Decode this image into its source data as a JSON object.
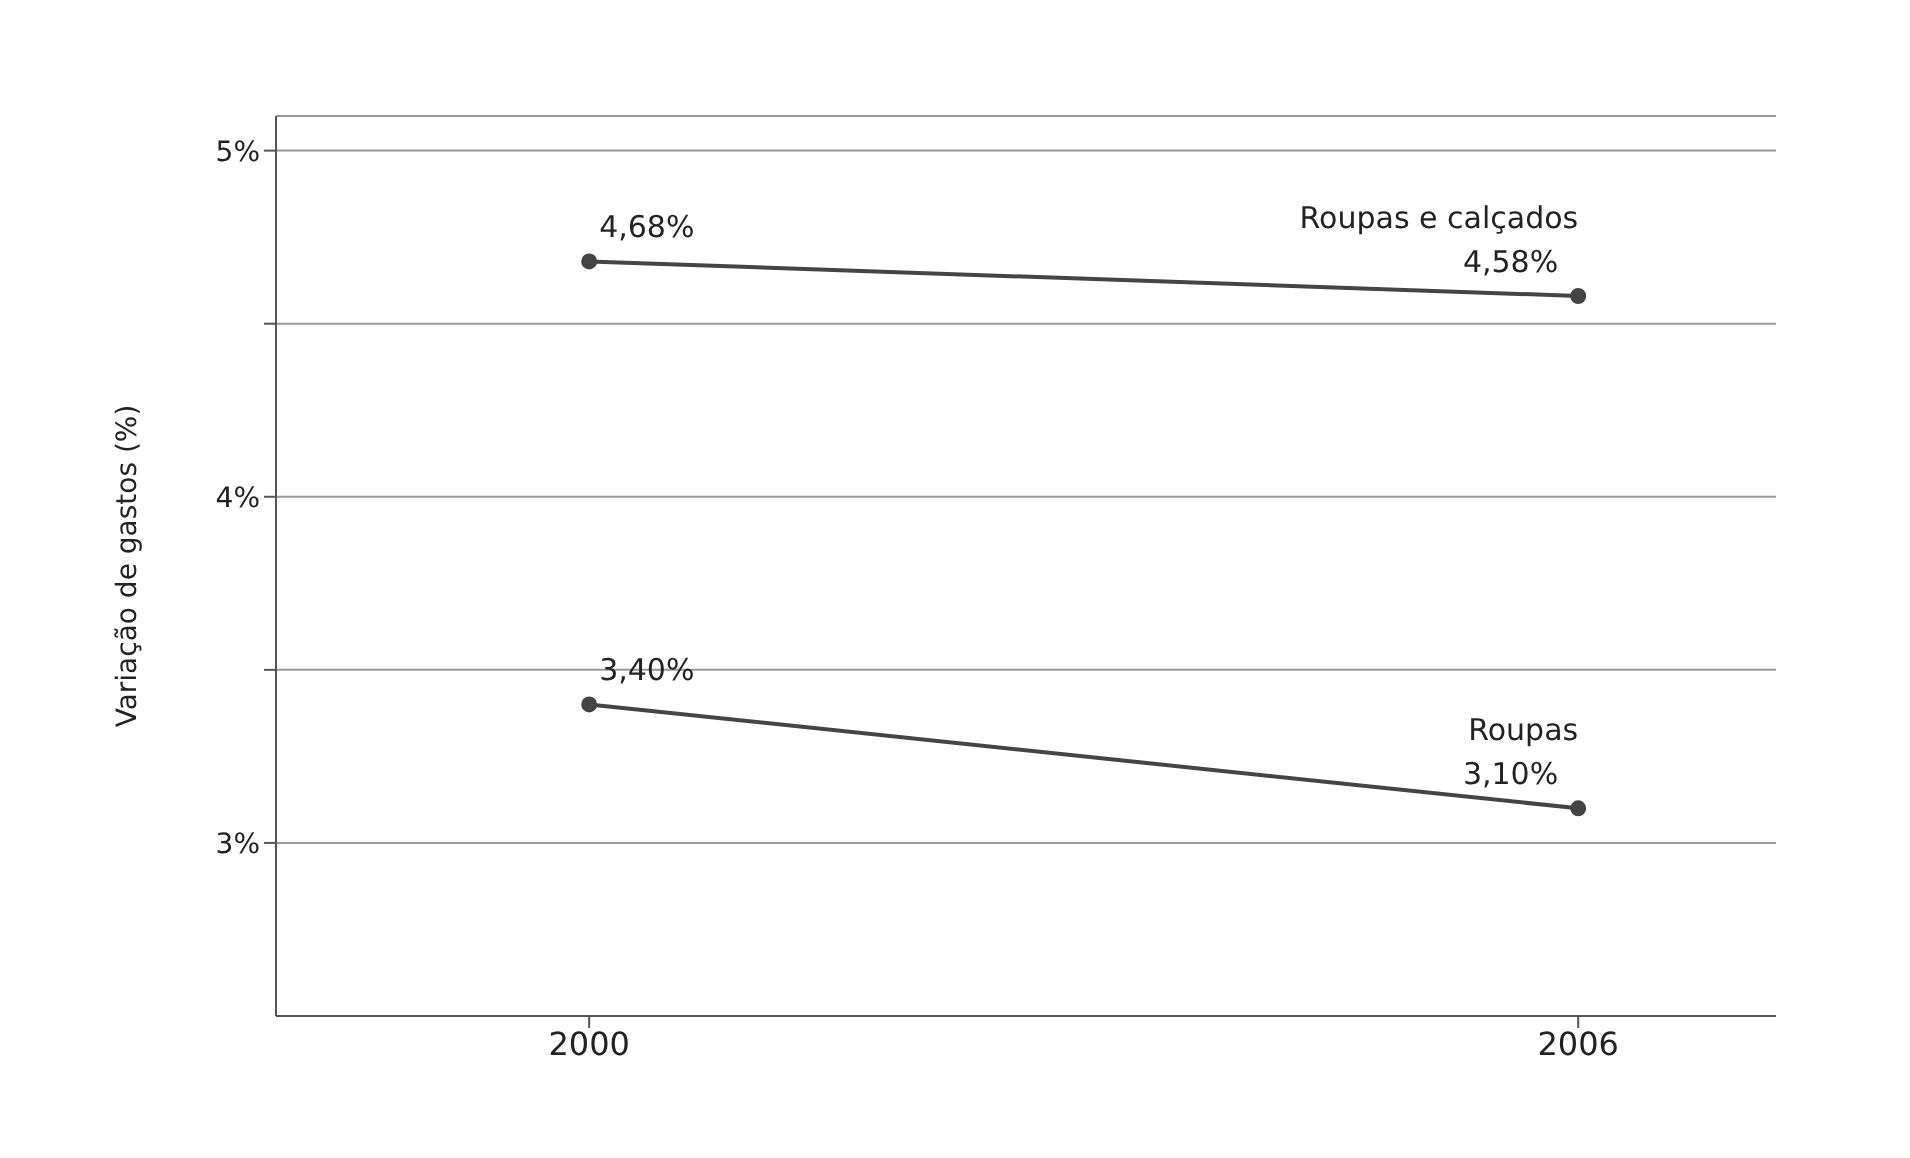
{
  "chart_data": {
    "type": "line",
    "ylabel": "Variação de gastos (%)",
    "x": [
      2000,
      2006
    ],
    "series": [
      {
        "name": "Roupas e calçados",
        "color": "#444444",
        "values": [
          4.68,
          4.58
        ],
        "value_labels": [
          "4,68%",
          "4,58%"
        ]
      },
      {
        "name": "Roupas",
        "color": "#444444",
        "values": [
          3.4,
          3.1
        ],
        "value_labels": [
          "3,40%",
          "3,10%"
        ]
      }
    ],
    "xlim": [
      1998.1,
      2007.2
    ],
    "xticks": [
      2000,
      2006
    ],
    "ylim": [
      2.5,
      5.1
    ],
    "yticks": [
      {
        "value": 3,
        "label": "3%"
      },
      {
        "value": 3.5,
        "label": null
      },
      {
        "value": 4,
        "label": "4%"
      },
      {
        "value": 4.5,
        "label": null
      },
      {
        "value": 5,
        "label": "5%"
      }
    ],
    "grid": "y",
    "legend": false,
    "marker": "circle",
    "line_style": "solid"
  }
}
